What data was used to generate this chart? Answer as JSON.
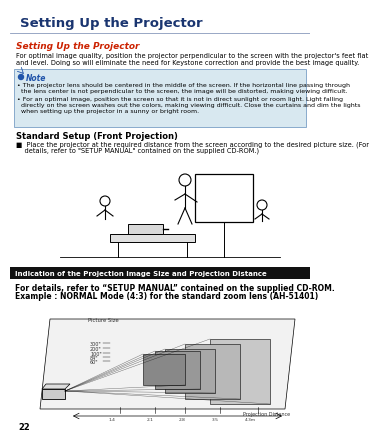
{
  "page_num": "22",
  "header_title": "Setting Up the Projector",
  "header_text_color": "#1a3570",
  "section1_title": "Setting Up the Projector",
  "section1_title_color": "#cc2200",
  "section1_body1": "For optimal image quality, position the projector perpendicular to the screen with the projector's feet flat",
  "section1_body2": "and level. Doing so will eliminate the need for Keystone correction and provide the best image quality.",
  "note_bg": "#d8e8f0",
  "note_border": "#88aacc",
  "note_title": "Note",
  "note_icon_color": "#2255aa",
  "note_b1_l1": "• The projector lens should be centered in the middle of the screen. If the horizontal line passing through",
  "note_b1_l2": "  the lens center is not perpendicular to the screen, the image will be distorted, making viewing difficult.",
  "note_b2_l1": "• For an optimal image, position the screen so that it is not in direct sunlight or room light. Light falling",
  "note_b2_l2": "  directly on the screen washes out the colors, making viewing difficult. Close the curtains and dim the lights",
  "note_b2_l3": "  when setting up the projector in a sunny or bright room.",
  "section2_title": "Standard Setup (Front Projection)",
  "section2_b1": "■  Place the projector at the required distance from the screen according to the desired picture size. (For",
  "section2_b2": "    details, refer to \"SETUP MANUAL\" contained on the supplied CD-ROM.)",
  "bottom_bar_bg": "#111111",
  "bottom_bar_text": "Indication of the Projection Image Size and Projection Distance",
  "bottom_bar_text_color": "#ffffff",
  "bottom_text1": "For details, refer to “SETUP MANUAL” contained on the supplied CD-ROM.",
  "bottom_text2": "Example : NORMAL Mode (4:3) for the standard zoom lens (AH-51401)",
  "body_text_color": "#000000",
  "fs_body": 4.8,
  "fs_note": 4.5,
  "fs_section1_title": 6.5,
  "fs_section2_title": 6.0,
  "fs_header": 9.5,
  "bg_color": "#ffffff",
  "arc_color": "#bbc8dc",
  "header_line_color": "#8899bb",
  "picture_size_labels": [
    "300'",
    "200'",
    "100'",
    "84'",
    "60'"
  ],
  "bottom_text_bold": true
}
